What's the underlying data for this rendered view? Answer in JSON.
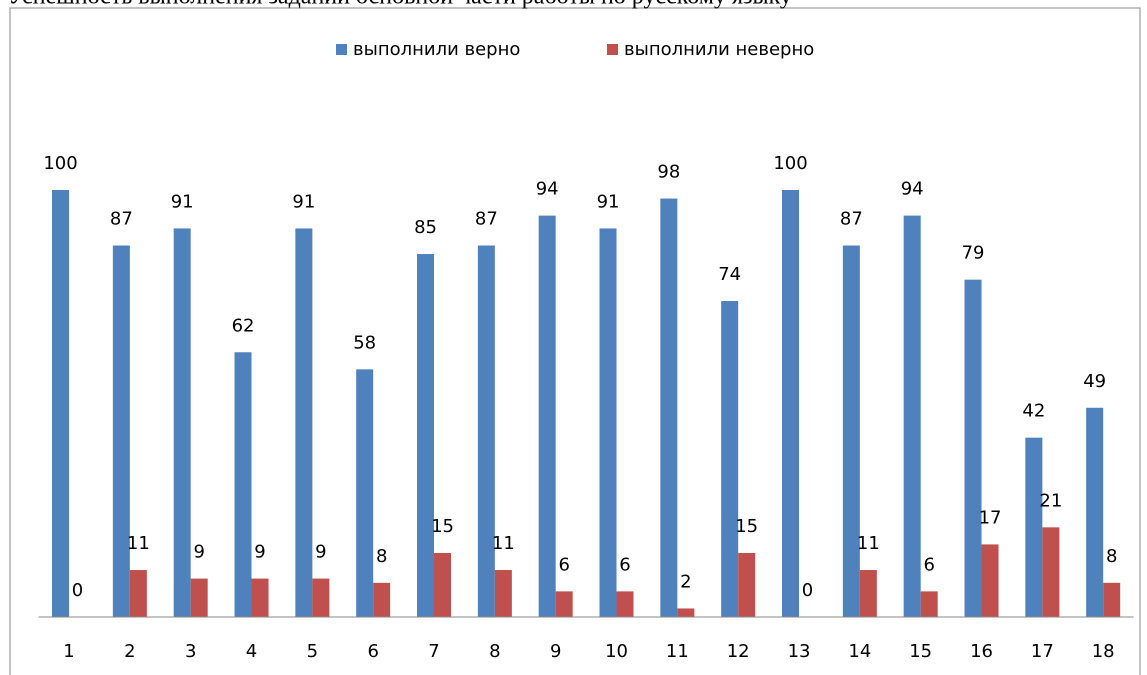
{
  "chart_data": {
    "type": "bar",
    "title": "Успешность выполнения заданий основной части работы по русскому языку",
    "categories": [
      "1",
      "2",
      "3",
      "4",
      "5",
      "6",
      "7",
      "8",
      "9",
      "10",
      "11",
      "12",
      "13",
      "14",
      "15",
      "16",
      "17",
      "18"
    ],
    "series": [
      {
        "name": "выполнили верно",
        "color": "#4f81bd",
        "values": [
          100,
          87,
          91,
          62,
          91,
          58,
          85,
          87,
          94,
          91,
          98,
          74,
          100,
          87,
          94,
          79,
          42,
          49
        ]
      },
      {
        "name": "выполнили неверно",
        "color": "#c0504d",
        "values": [
          0,
          11,
          9,
          9,
          9,
          8,
          15,
          11,
          6,
          6,
          2,
          15,
          0,
          11,
          6,
          17,
          21,
          8
        ]
      }
    ],
    "ylim": [
      0,
      100
    ],
    "legend": "top"
  }
}
